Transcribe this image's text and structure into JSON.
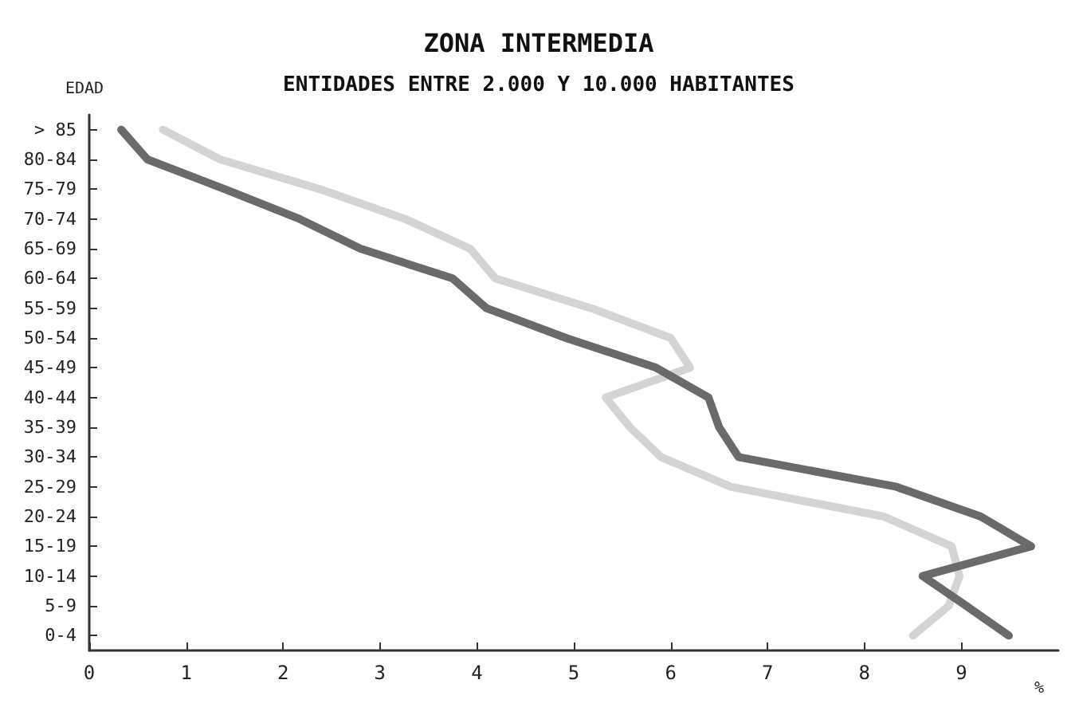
{
  "chart_data": {
    "type": "line",
    "orientation": "horizontal",
    "title": "ZONA INTERMEDIA",
    "subtitle": "ENTIDADES ENTRE 2.000 Y 10.000 HABITANTES",
    "ylabel": "EDAD",
    "xlabel": "%",
    "categories": [
      "> 85",
      "80-84",
      "75-79",
      "70-74",
      "65-69",
      "60-64",
      "55-59",
      "50-54",
      "45-49",
      "40-44",
      "35-39",
      "30-34",
      "25-29",
      "20-24",
      "15-19",
      "10-14",
      "5-9",
      "0-4"
    ],
    "series": [
      {
        "color": "#d4d4d4",
        "values": [
          0.76,
          1.35,
          2.38,
          3.26,
          3.93,
          4.19,
          5.18,
          6.0,
          6.2,
          5.33,
          5.58,
          5.9,
          6.62,
          8.2,
          8.9,
          8.98,
          8.87,
          8.5
        ]
      },
      {
        "color": "#6a6a6a",
        "values": [
          0.33,
          0.6,
          1.4,
          2.17,
          2.8,
          3.75,
          4.1,
          4.92,
          5.85,
          6.39,
          6.5,
          6.7,
          8.33,
          9.2,
          9.72,
          8.6,
          9.05,
          9.49
        ]
      }
    ],
    "xlim": [
      0,
      10
    ],
    "xticks": [
      0,
      1,
      2,
      3,
      4,
      5,
      6,
      7,
      8,
      9
    ],
    "grid": false,
    "marker": "none",
    "line_style": "solid"
  }
}
